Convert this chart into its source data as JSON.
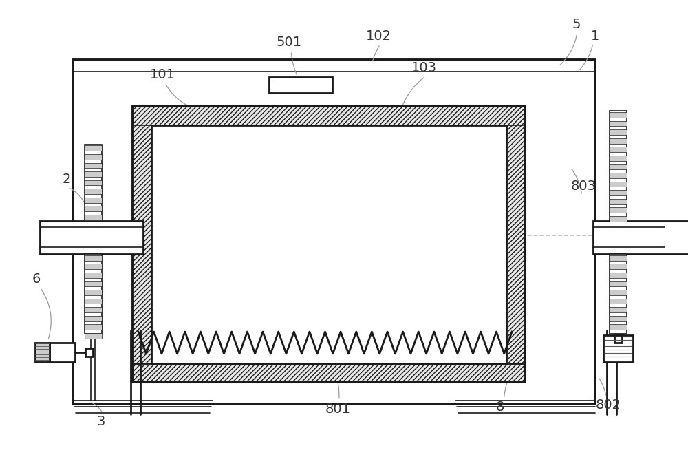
{
  "bg_color": "#ffffff",
  "lc": "#1a1a1a",
  "gray": "#aaaaaa",
  "light_gray": "#dddddd",
  "figsize": [
    10.0,
    6.8
  ],
  "dpi": 100,
  "lw_thick": 2.8,
  "lw_main": 2.0,
  "lw_thin": 1.2,
  "lw_dash": 1.2,
  "lw_leader": 1.0,
  "label_fs": 14,
  "label_color": "#333333"
}
